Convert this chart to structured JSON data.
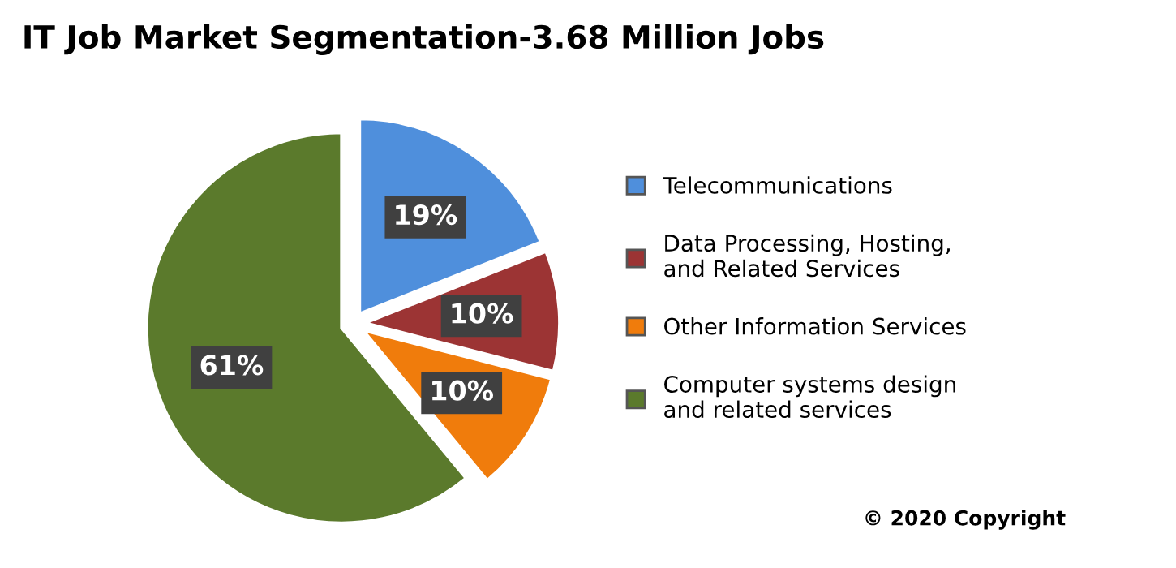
{
  "chart_data": {
    "type": "pie",
    "title": "IT Job Market Segmentation-3.68 Million Jobs",
    "categories": [
      "Telecommunications",
      "Data Processing, Hosting,\nand Related Services",
      "Other Information Services",
      "Computer systems design\nand related services"
    ],
    "values": [
      19,
      10,
      10,
      61
    ],
    "colors": [
      "#4f8fdc",
      "#9c3434",
      "#f07c0c",
      "#5b7a2c"
    ],
    "value_labels": [
      "19%",
      "10%",
      "10%",
      "61%"
    ],
    "legend": "right",
    "annotations": [
      "© 2020 Copyright"
    ]
  }
}
